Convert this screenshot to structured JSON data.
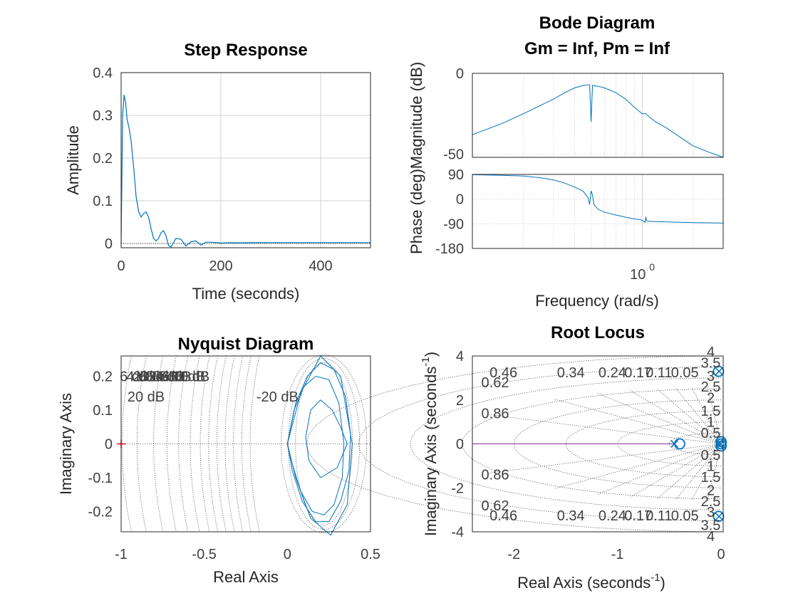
{
  "colors": {
    "curve": "#0072BD",
    "critical_point": "#FF0000",
    "locus_branch": "#7E2F8E",
    "grid": "#d0d0d0",
    "dotted": "#333333",
    "axes": "#262626"
  },
  "chart_data": [
    {
      "type": "line",
      "title": "Step Response",
      "xlabel": "Time (seconds)",
      "ylabel": "Amplitude",
      "xlim": [
        0,
        500
      ],
      "ylim": [
        -0.01,
        0.4
      ],
      "xticks": [
        "0",
        "200",
        "400"
      ],
      "yticks": [
        "0",
        "0.1",
        "0.2",
        "0.3",
        "0.4"
      ],
      "grid": true,
      "series": [
        {
          "x": [
            0,
            3,
            6,
            9,
            12,
            16,
            20,
            25,
            30,
            35,
            40,
            45,
            50,
            55,
            60,
            65,
            70,
            75,
            80,
            85,
            90,
            95,
            100,
            110,
            120,
            130,
            140,
            150,
            160,
            170,
            180,
            200,
            220,
            240,
            260,
            280,
            300,
            350,
            400,
            450,
            500
          ],
          "y": [
            0.0,
            0.3,
            0.348,
            0.33,
            0.29,
            0.27,
            0.24,
            0.18,
            0.11,
            0.075,
            0.062,
            0.07,
            0.074,
            0.062,
            0.035,
            0.012,
            0.006,
            0.012,
            0.025,
            0.03,
            0.018,
            -0.005,
            -0.008,
            0.012,
            0.01,
            -0.006,
            0.004,
            0.006,
            -0.004,
            0.003,
            0.003,
            0.001,
            0.002,
            0.0015,
            0.002,
            0.0018,
            0.002,
            0.002,
            0.002,
            0.002,
            0.002
          ]
        }
      ],
      "reference_line": 0
    },
    {
      "type": "line",
      "title": "Bode Diagram",
      "subtitle": "Gm = Inf,  Pm = Inf",
      "xlabel": "Frequency  (rad/s)",
      "xscale": "log",
      "xlim": [
        0.1,
        3
      ],
      "xticks": [
        "10"
      ],
      "xtick_exponent": "0",
      "subplots": [
        {
          "ylabel": "Magnitude (dB)",
          "ylim": [
            -52,
            0
          ],
          "yticks": [
            "-50",
            "0"
          ],
          "series": [
            {
              "x": [
                0.1,
                0.15,
                0.2,
                0.25,
                0.3,
                0.35,
                0.4,
                0.45,
                0.49,
                0.5,
                0.51,
                0.55,
                0.6,
                0.7,
                0.8,
                0.9,
                1.0,
                1.05,
                1.1,
                1.2,
                1.4,
                1.7,
                2.0,
                2.5,
                3.0
              ],
              "y": [
                -38,
                -31,
                -25,
                -20,
                -16,
                -12,
                -9,
                -7.5,
                -7,
                -30,
                -7.5,
                -8,
                -9,
                -12,
                -16,
                -21,
                -25,
                -25,
                -27,
                -30,
                -34,
                -40,
                -45,
                -49,
                -52
              ]
            }
          ]
        },
        {
          "ylabel": "Phase (deg)",
          "ylim": [
            -180,
            90
          ],
          "yticks": [
            "-180",
            "-90",
            "0",
            "90"
          ],
          "series": [
            {
              "x": [
                0.1,
                0.15,
                0.2,
                0.25,
                0.3,
                0.35,
                0.4,
                0.45,
                0.48,
                0.49,
                0.5,
                0.51,
                0.52,
                0.55,
                0.6,
                0.7,
                0.8,
                0.9,
                1.0,
                1.04,
                1.05,
                1.06,
                1.1,
                1.2,
                1.5,
                2.0,
                3.0
              ],
              "y": [
                89,
                87,
                84,
                78,
                70,
                58,
                44,
                28,
                5,
                -20,
                30,
                15,
                -20,
                -37,
                -48,
                -58,
                -66,
                -72,
                -77,
                -85,
                -65,
                -79,
                -81,
                -82,
                -84,
                -86,
                -87
              ]
            }
          ]
        }
      ]
    },
    {
      "type": "line",
      "title": "Nyquist Diagram",
      "xlabel": "Real Axis",
      "ylabel": "Imaginary Axis",
      "xlim": [
        -1,
        0.5
      ],
      "ylim": [
        -0.26,
        0.26
      ],
      "xticks": [
        "-1",
        "-0.5",
        "0",
        "0.5"
      ],
      "yticks": [
        "-0.2",
        "-0.1",
        "0",
        "0.1",
        "0.2"
      ],
      "critical_point": [
        -1,
        0
      ],
      "grid_labels": [
        "6 dB",
        "4 dB",
        "2 dB",
        "0 dB",
        "-2 dB",
        "-4 dB",
        "-6 dB",
        "-10 dB",
        "20 dB",
        "-20 dB",
        "10 dB"
      ],
      "series": [
        {
          "x": [
            0.0,
            0.05,
            0.12,
            0.2,
            0.28,
            0.35,
            0.38,
            0.37,
            0.32,
            0.25,
            0.17,
            0.09,
            0.03,
            0.0
          ],
          "y": [
            0.0,
            0.12,
            0.2,
            0.24,
            0.22,
            0.14,
            0.03,
            -0.08,
            -0.17,
            -0.23,
            -0.23,
            -0.17,
            -0.08,
            0.0
          ]
        },
        {
          "x": [
            0.0,
            0.04,
            0.1,
            0.17,
            0.25,
            0.31,
            0.34,
            0.33,
            0.28,
            0.22,
            0.15,
            0.08,
            0.03,
            0.0
          ],
          "y": [
            0.0,
            0.1,
            0.17,
            0.2,
            0.19,
            0.12,
            0.0,
            -0.1,
            -0.18,
            -0.21,
            -0.2,
            -0.14,
            -0.06,
            0.0
          ]
        },
        {
          "x": [
            0.0,
            0.08,
            0.2,
            0.32,
            0.39,
            0.36,
            0.26,
            0.14,
            0.05,
            0.0
          ],
          "y": [
            0.0,
            0.15,
            0.26,
            0.2,
            0.0,
            -0.18,
            -0.27,
            -0.22,
            -0.1,
            0.0
          ]
        },
        {
          "x": [
            0.14,
            0.2,
            0.27,
            0.32,
            0.36,
            0.3,
            0.2,
            0.13,
            0.11,
            0.14
          ],
          "y": [
            0.1,
            0.13,
            0.1,
            0.05,
            0.0,
            -0.07,
            -0.1,
            -0.05,
            0.02,
            0.1
          ]
        }
      ]
    },
    {
      "type": "scatter",
      "title": "Root Locus",
      "xlabel": "Real Axis (seconds",
      "xlabel_exponent": "-1",
      "ylabel": "Imaginary Axis (seconds",
      "ylabel_exponent": "-1",
      "xlim": [
        -2.4,
        0.02
      ],
      "ylim": [
        -4,
        4
      ],
      "xticks": [
        "-2",
        "-1",
        "0"
      ],
      "yticks": [
        "-4",
        "-2",
        "0",
        "2",
        "4"
      ],
      "damping_labels": [
        "0.46",
        "0.34",
        "0.24",
        "0.17",
        "0.11",
        "0.05",
        "0.62",
        "0.86"
      ],
      "frequency_labels": [
        "4",
        "3.5",
        "3",
        "2.5",
        "2",
        "1.5",
        "1",
        "0.5"
      ],
      "poles": [
        [
          -0.45,
          0
        ],
        [
          -0.02,
          3.3
        ],
        [
          -0.02,
          -3.3
        ],
        [
          -0.015,
          0.05
        ],
        [
          -0.015,
          -0.05
        ]
      ],
      "zeros": [
        [
          -0.4,
          0
        ],
        [
          -0.025,
          3.3
        ],
        [
          -0.025,
          -3.3
        ],
        [
          0,
          0.1
        ],
        [
          0,
          -0.1
        ],
        [
          0,
          0
        ]
      ],
      "locus_branch": {
        "x": [
          -2.4,
          -0.45
        ],
        "y": [
          0,
          0
        ]
      }
    }
  ]
}
